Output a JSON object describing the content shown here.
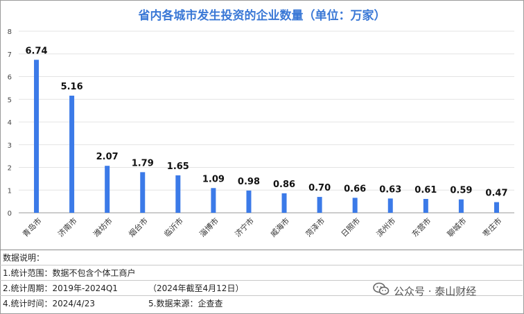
{
  "chart_data": {
    "type": "bar",
    "title": "省内各城市发生投资的企业数量（单位：万家）",
    "categories": [
      "青岛市",
      "济南市",
      "潍坊市",
      "烟台市",
      "临沂市",
      "淄博市",
      "济宁市",
      "威海市",
      "菏泽市",
      "日照市",
      "滨州市",
      "东营市",
      "聊城市",
      "枣庄市"
    ],
    "values": [
      6.74,
      5.16,
      2.07,
      1.79,
      1.65,
      1.09,
      0.98,
      0.86,
      0.7,
      0.66,
      0.63,
      0.61,
      0.59,
      0.47
    ],
    "data_labels": [
      "6.74",
      "5.16",
      "2.07",
      "1.79",
      "1.65",
      "1.09",
      "0.98",
      "0.86",
      "0.70",
      "0.66",
      "0.63",
      "0.61",
      "0.59",
      "0.47"
    ],
    "ylim": [
      0,
      8
    ],
    "yticks": [
      0,
      1,
      2,
      3,
      4,
      5,
      6,
      7,
      8
    ],
    "grid": true,
    "bar_color": "#3b7ae8"
  },
  "notes": {
    "heading": "数据说明：",
    "line1": "1.统计范围：数据不包含个体工商户",
    "line2_left": "2.统计周期：2019年-2024Q1",
    "line2_right": "（2024年截至4月12日）",
    "line3_left": "4.统计时间：2024/4/23",
    "line3_right": "5.数据来源：企查查"
  },
  "watermark": {
    "text": "公众号 · 泰山财经",
    "icon": "wechat-icon"
  }
}
